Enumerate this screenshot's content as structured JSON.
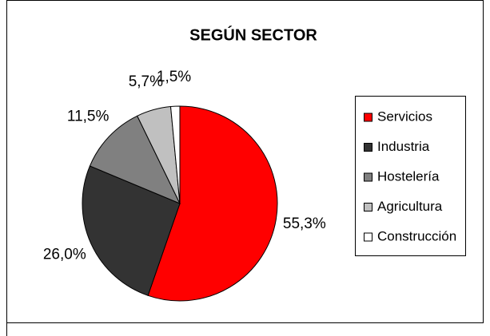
{
  "chart_data": {
    "type": "pie",
    "title": "SEGÚN SECTOR",
    "categories": [
      "Servicios",
      "Industria",
      "Hostelería",
      "Agricultura",
      "Construcción"
    ],
    "values": [
      55.3,
      26.0,
      11.5,
      5.7,
      1.5
    ],
    "value_labels": [
      "55,3%",
      "26,0%",
      "11,5%",
      "5,7%",
      "1,5%"
    ],
    "colors": [
      "#ff0000",
      "#333333",
      "#808080",
      "#c0c0c0",
      "#ffffff"
    ],
    "legend": "right"
  }
}
